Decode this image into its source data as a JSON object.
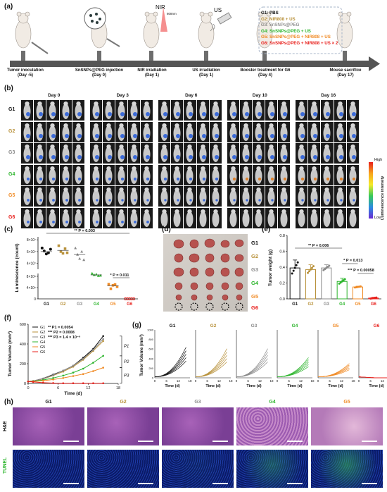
{
  "panels": {
    "a": "(a)",
    "b": "(b)",
    "c": "(c)",
    "d": "(d)",
    "e": "(e)",
    "f": "(f)",
    "g": "(g)",
    "h": "(h)"
  },
  "colors": {
    "G1": "#111111",
    "G2": "#b8913a",
    "G3": "#8a8a8a",
    "G4": "#2db52d",
    "G5": "#f08a24",
    "G6": "#e8201c"
  },
  "timeline": {
    "nir_label": "NIR",
    "nir_wavelength": "808nm",
    "us_label": "US",
    "events": [
      {
        "label": "Tumor inoculation",
        "day": "(Day -5)"
      },
      {
        "label": "SnSNPs@PEG injection",
        "day": "(Day 0)"
      },
      {
        "label": "NIR irradiation",
        "day": "(Day 1)"
      },
      {
        "label": "US irradiation",
        "day": "(Day 1)"
      },
      {
        "label": "Booster treatment for G6",
        "day": "(Day 4)"
      },
      {
        "label": "Mouse sacrifice",
        "day": "(Day 17)"
      }
    ],
    "legend": [
      {
        "id": "G1",
        "text": "G1: PBS"
      },
      {
        "id": "G2",
        "text": "G2: NIR808 + US"
      },
      {
        "id": "G3",
        "text": "G3: SnSNPs@PEG"
      },
      {
        "id": "G4",
        "text": "G4: SnSNPs@PEG + US"
      },
      {
        "id": "G5",
        "text": "G5: SnSNPs@PEG + NIR808 + US"
      },
      {
        "id": "G6",
        "text": "G6: SnSNPs@PEG + NIR808 + US × 2"
      }
    ]
  },
  "imaging": {
    "days": [
      "Day 0",
      "Day 3",
      "Day 6",
      "Day 10",
      "Day 16"
    ],
    "groups": [
      "G1",
      "G2",
      "G3",
      "G4",
      "G5",
      "G6"
    ],
    "colorbar_high": "High",
    "colorbar_low": "Low",
    "colorbar_title": "Luminescence intensity"
  },
  "panel_c": {
    "ylabel": "Luminescence (count)",
    "yticks": [
      "8×10⁷",
      "6×10⁷",
      "4×10⁷",
      "8×10⁶",
      "4×10⁶",
      "0"
    ],
    "categories": [
      "G1",
      "G2",
      "G3",
      "G4",
      "G5",
      "G6"
    ],
    "sig1": "** P = 0.003",
    "sig2": "* P = 0.011"
  },
  "panel_d": {
    "rows": [
      "G1",
      "G2",
      "G3",
      "G4",
      "G5",
      "G6"
    ]
  },
  "panel_e": {
    "ylabel": "Tumor weight (g)",
    "yticks": [
      "0.8",
      "0.6",
      "0.4",
      "0.2",
      "0.0"
    ],
    "categories": [
      "G1",
      "G2",
      "G3",
      "G4",
      "G5",
      "G6"
    ],
    "sig1": "** P = 0.006",
    "sig2": "* P = 0.013",
    "sig3": "*** P = 0.00058"
  },
  "chart_data": [
    {
      "type": "scatter",
      "panel": "c",
      "ylabel": "Luminescence (count)",
      "categories": [
        "G1",
        "G2",
        "G3",
        "G4",
        "G5",
        "G6"
      ],
      "means": [
        60000000,
        62000000,
        55000000,
        8500000,
        4600000,
        0
      ],
      "series": [
        {
          "name": "G1",
          "values": [
            66000000,
            61000000,
            56000000,
            58000000,
            64000000
          ]
        },
        {
          "name": "G2",
          "values": [
            70000000,
            60000000,
            57000000,
            65000000,
            58000000
          ]
        },
        {
          "name": "G3",
          "values": [
            66000000,
            55000000,
            48000000,
            60000000,
            46000000
          ]
        },
        {
          "name": "G4",
          "values": [
            9000000,
            8500000,
            8700000,
            8200000,
            8300000
          ]
        },
        {
          "name": "G5",
          "values": [
            5200000,
            3600000,
            4800000,
            5100000,
            4300000
          ]
        },
        {
          "name": "G6",
          "values": [
            0,
            0,
            0,
            0,
            0
          ]
        }
      ]
    },
    {
      "type": "bar",
      "panel": "e",
      "ylabel": "Tumor weight (g)",
      "ylim": [
        0,
        0.8
      ],
      "categories": [
        "G1",
        "G2",
        "G3",
        "G4",
        "G5",
        "G6"
      ],
      "values": [
        0.39,
        0.37,
        0.39,
        0.22,
        0.15,
        0.01
      ],
      "errors": [
        0.1,
        0.06,
        0.04,
        0.04,
        0.01,
        0.01
      ]
    },
    {
      "type": "line",
      "panel": "f",
      "xlabel": "Time (d)",
      "ylabel": "Tumor Volume (mm³)",
      "x": [
        0,
        1,
        3,
        5,
        7,
        9,
        11,
        13,
        15
      ],
      "ylim": [
        0,
        600
      ],
      "xlim": [
        0,
        18
      ],
      "annotations": [
        "** P1 = 0.0054",
        "*** P2 = 0.0008",
        "*** P3 = 1.4 × 10⁻⁶"
      ],
      "brackets": [
        "P1",
        "P2",
        "P3"
      ],
      "series": [
        {
          "name": "G1",
          "values": [
            20,
            25,
            50,
            90,
            130,
            180,
            260,
            350,
            480
          ]
        },
        {
          "name": "G2",
          "values": [
            20,
            24,
            45,
            80,
            120,
            170,
            240,
            330,
            430
          ]
        },
        {
          "name": "G3",
          "values": [
            20,
            25,
            48,
            85,
            130,
            180,
            250,
            340,
            450
          ]
        },
        {
          "name": "G4",
          "values": [
            20,
            22,
            35,
            55,
            80,
            110,
            150,
            210,
            280
          ]
        },
        {
          "name": "G5",
          "values": [
            20,
            20,
            28,
            40,
            55,
            75,
            95,
            125,
            160
          ]
        },
        {
          "name": "G6",
          "values": [
            20,
            15,
            8,
            4,
            2,
            2,
            2,
            2,
            2
          ]
        }
      ]
    }
  ],
  "panel_f": {
    "legend": [
      "G1",
      "G2",
      "G3",
      "G4",
      "G5",
      "G6"
    ],
    "xticks": [
      "0",
      "6",
      "12",
      "18"
    ],
    "yticks": [
      "600",
      "400",
      "200",
      "0"
    ]
  },
  "panel_g": {
    "groups": [
      "G1",
      "G2",
      "G3",
      "G4",
      "G5",
      "G6"
    ],
    "ylabel": "Tumor Volume (mm³)",
    "xlabel": "Time (d)",
    "xticks": [
      "0",
      "6",
      "12",
      "18"
    ],
    "yticks": [
      "1000",
      "800",
      "600",
      "400",
      "200",
      "0"
    ]
  },
  "panel_h": {
    "groups": [
      "G1",
      "G2",
      "G3",
      "G4",
      "G5"
    ],
    "rows": [
      "H&E",
      "TUNEL"
    ]
  }
}
